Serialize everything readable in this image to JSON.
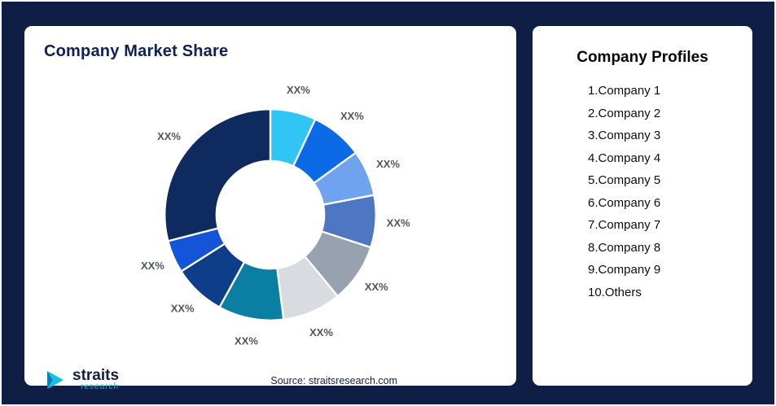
{
  "background_color": "#0f1e45",
  "left_card": {
    "title": "Company Market Share",
    "source": "Source: straitsresearch.com",
    "logo": {
      "main": "straits",
      "sub": "research",
      "icon": "straits-arrow-icon",
      "accent_color": "#14c0e4"
    }
  },
  "right_card": {
    "title": "Company Profiles",
    "items": [
      "1.Company 1",
      "2.Company 2",
      "3.Company 3",
      "4.Company 4",
      "5.Company 5",
      "6.Company 6",
      "7.Company 7",
      "8.Company 8",
      "9.Company 9",
      "10.Others"
    ]
  },
  "chart_data": {
    "type": "pie",
    "subtype": "donut",
    "title": "Company Market Share",
    "legend_position": "none",
    "inner_radius_ratio": 0.51,
    "start_angle_deg": 0,
    "direction": "clockwise",
    "segments": [
      {
        "label": "XX%",
        "value": 7,
        "color": "#30c5f5"
      },
      {
        "label": "XX%",
        "value": 8,
        "color": "#0b6be6"
      },
      {
        "label": "XX%",
        "value": 7,
        "color": "#6fa3f0"
      },
      {
        "label": "XX%",
        "value": 8,
        "color": "#4d77c2"
      },
      {
        "label": "XX%",
        "value": 9,
        "color": "#98a1af"
      },
      {
        "label": "XX%",
        "value": 9,
        "color": "#d8dbe0"
      },
      {
        "label": "XX%",
        "value": 10,
        "color": "#0b7ea4"
      },
      {
        "label": "XX%",
        "value": 8,
        "color": "#0e3d8a"
      },
      {
        "label": "XX%",
        "value": 5,
        "color": "#1355d6"
      },
      {
        "label": "XX%",
        "value": 29,
        "color": "#0e2a5e"
      }
    ]
  }
}
